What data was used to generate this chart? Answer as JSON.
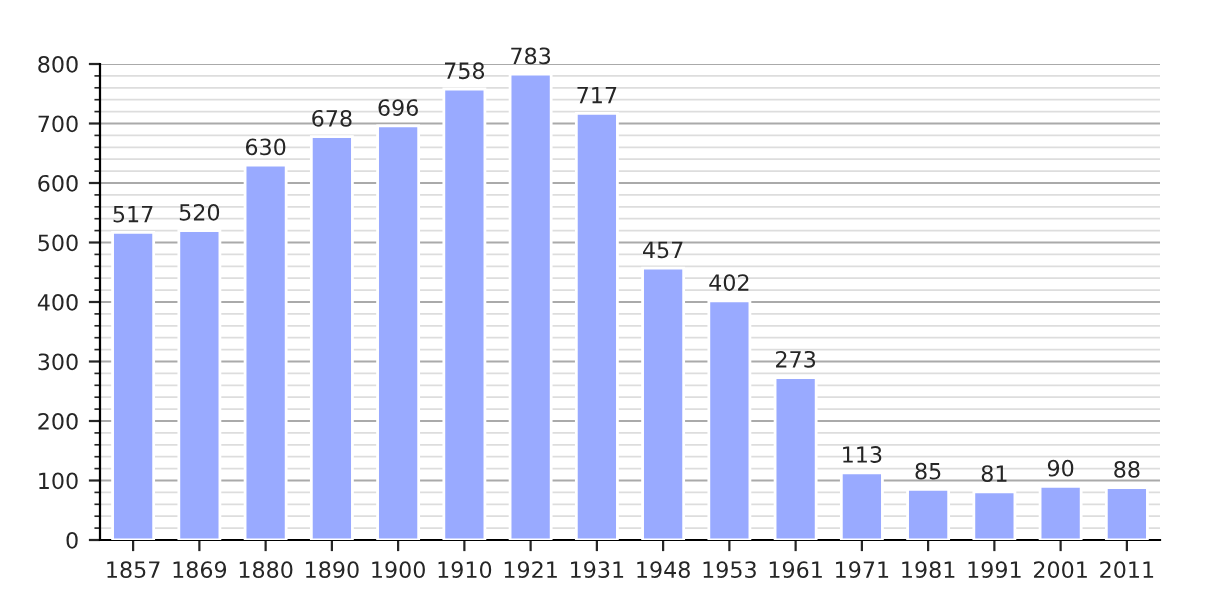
{
  "chart_data": {
    "type": "bar",
    "categories": [
      "1857",
      "1869",
      "1880",
      "1890",
      "1900",
      "1910",
      "1921",
      "1931",
      "1948",
      "1953",
      "1961",
      "1971",
      "1981",
      "1991",
      "2001",
      "2011"
    ],
    "values": [
      517,
      520,
      630,
      678,
      696,
      758,
      783,
      717,
      457,
      402,
      273,
      113,
      85,
      81,
      90,
      88
    ],
    "color": "#99aaff",
    "ylim": [
      0,
      800
    ],
    "yticks": [
      0,
      100,
      200,
      300,
      400,
      500,
      600,
      700,
      800
    ],
    "grid": "y",
    "data_labels": true
  }
}
